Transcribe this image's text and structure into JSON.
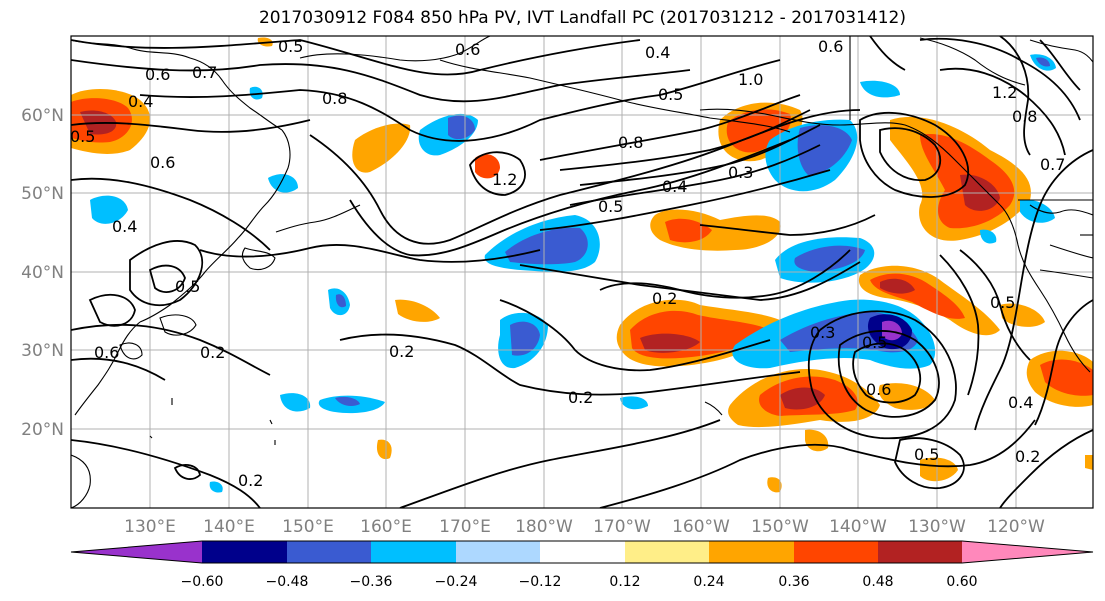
{
  "title": "2017030912 F084 850 hPa PV, IVT Landfall PC (2017031212 - 2017031412)",
  "map": {
    "lat_ticks": [
      "60°N",
      "50°N",
      "40°N",
      "30°N",
      "20°N"
    ],
    "lon_ticks": [
      "130°E",
      "140°E",
      "150°E",
      "160°E",
      "170°E",
      "180°W",
      "170°W",
      "160°W",
      "150°W",
      "140°W",
      "130°W",
      "120°W"
    ],
    "contour_labels": [
      "0.5",
      "0.6",
      "0.7",
      "0.8",
      "0.4",
      "0.5",
      "0.6",
      "1.2",
      "1.0",
      "0.5",
      "0.8",
      "1.2",
      "0.3",
      "0.4",
      "0.5",
      "0.2",
      "0.2",
      "0.2",
      "0.3",
      "0.5",
      "0.6",
      "0.5",
      "0.4",
      "0.2",
      "0.6",
      "0.5",
      "0.2",
      "0.6",
      "0.2",
      "0.7",
      "0.8",
      "0.4",
      "0.5",
      "0.6",
      "0.4"
    ],
    "colors": {
      "coastline": "#000000",
      "gridline": "#b0b0b0",
      "contour": "#000000"
    }
  },
  "colorbar": {
    "tick_labels": [
      "−0.60",
      "−0.48",
      "−0.36",
      "−0.24",
      "−0.12",
      "0.12",
      "0.24",
      "0.36",
      "0.48",
      "0.60"
    ],
    "colors": [
      "#9932cc",
      "#00008b",
      "#3a5bd1",
      "#00bfff",
      "#add8ff",
      "#ffffff",
      "#ffee88",
      "#ffa500",
      "#ff4500",
      "#b22222",
      "#ff88bb"
    ]
  }
}
